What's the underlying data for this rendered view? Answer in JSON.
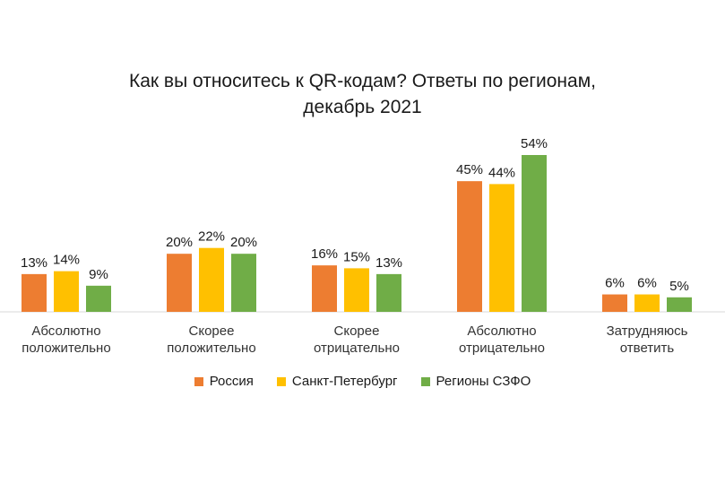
{
  "chart_data": {
    "type": "bar",
    "title_lines": [
      "Как вы относитесь к QR-кодам? Ответы по регионам,",
      "декабрь 2021"
    ],
    "categories": [
      [
        "Абсолютно",
        "положительно"
      ],
      [
        "Скорее",
        "положительно"
      ],
      [
        "Скорее",
        "отрицательно"
      ],
      [
        "Абсолютно",
        "отрицательно"
      ],
      [
        "Затрудняюсь",
        "ответить"
      ]
    ],
    "series": [
      {
        "name": "Россия",
        "color": "#ED7D31",
        "values": [
          13,
          20,
          16,
          45,
          6
        ]
      },
      {
        "name": "Санкт-Петербург",
        "color": "#FFC000",
        "values": [
          14,
          22,
          15,
          44,
          6
        ]
      },
      {
        "name": "Регионы СЗФО",
        "color": "#70AD47",
        "values": [
          9,
          20,
          13,
          54,
          5
        ]
      }
    ],
    "value_suffix": "%",
    "ylim": [
      0,
      54
    ],
    "grid": false,
    "legend_position": "bottom"
  }
}
